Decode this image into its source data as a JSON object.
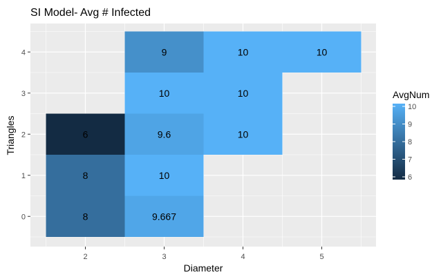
{
  "chart_data": {
    "type": "heatmap",
    "title": "SI Model- Avg # Infected",
    "xlabel": "Diameter",
    "ylabel": "Triangles",
    "x_categories": [
      "2",
      "3",
      "4",
      "5"
    ],
    "y_categories": [
      "0",
      "1",
      "2",
      "3",
      "4"
    ],
    "cells": [
      {
        "x": "2",
        "y": "0",
        "value": 8,
        "label": "8"
      },
      {
        "x": "2",
        "y": "1",
        "value": 8,
        "label": "8"
      },
      {
        "x": "2",
        "y": "2",
        "value": 6,
        "label": "6"
      },
      {
        "x": "3",
        "y": "0",
        "value": 9.667,
        "label": "9.667"
      },
      {
        "x": "3",
        "y": "1",
        "value": 10,
        "label": "10"
      },
      {
        "x": "3",
        "y": "2",
        "value": 9.6,
        "label": "9.6"
      },
      {
        "x": "3",
        "y": "3",
        "value": 10,
        "label": "10"
      },
      {
        "x": "3",
        "y": "4",
        "value": 9,
        "label": "9"
      },
      {
        "x": "4",
        "y": "2",
        "value": 10,
        "label": "10"
      },
      {
        "x": "4",
        "y": "3",
        "value": 10,
        "label": "10"
      },
      {
        "x": "4",
        "y": "4",
        "value": 10,
        "label": "10"
      },
      {
        "x": "5",
        "y": "4",
        "value": 10,
        "label": "10"
      }
    ],
    "legend": {
      "title": "AvgNum",
      "min": 6,
      "max": 10,
      "ticks": [
        "6",
        "7",
        "8",
        "9",
        "10"
      ],
      "low_color": "#132b43",
      "high_color": "#56b1f7",
      "placement": "right"
    },
    "panel_background": "#ebebeb",
    "grid_color": "#ffffff",
    "grid": true
  }
}
